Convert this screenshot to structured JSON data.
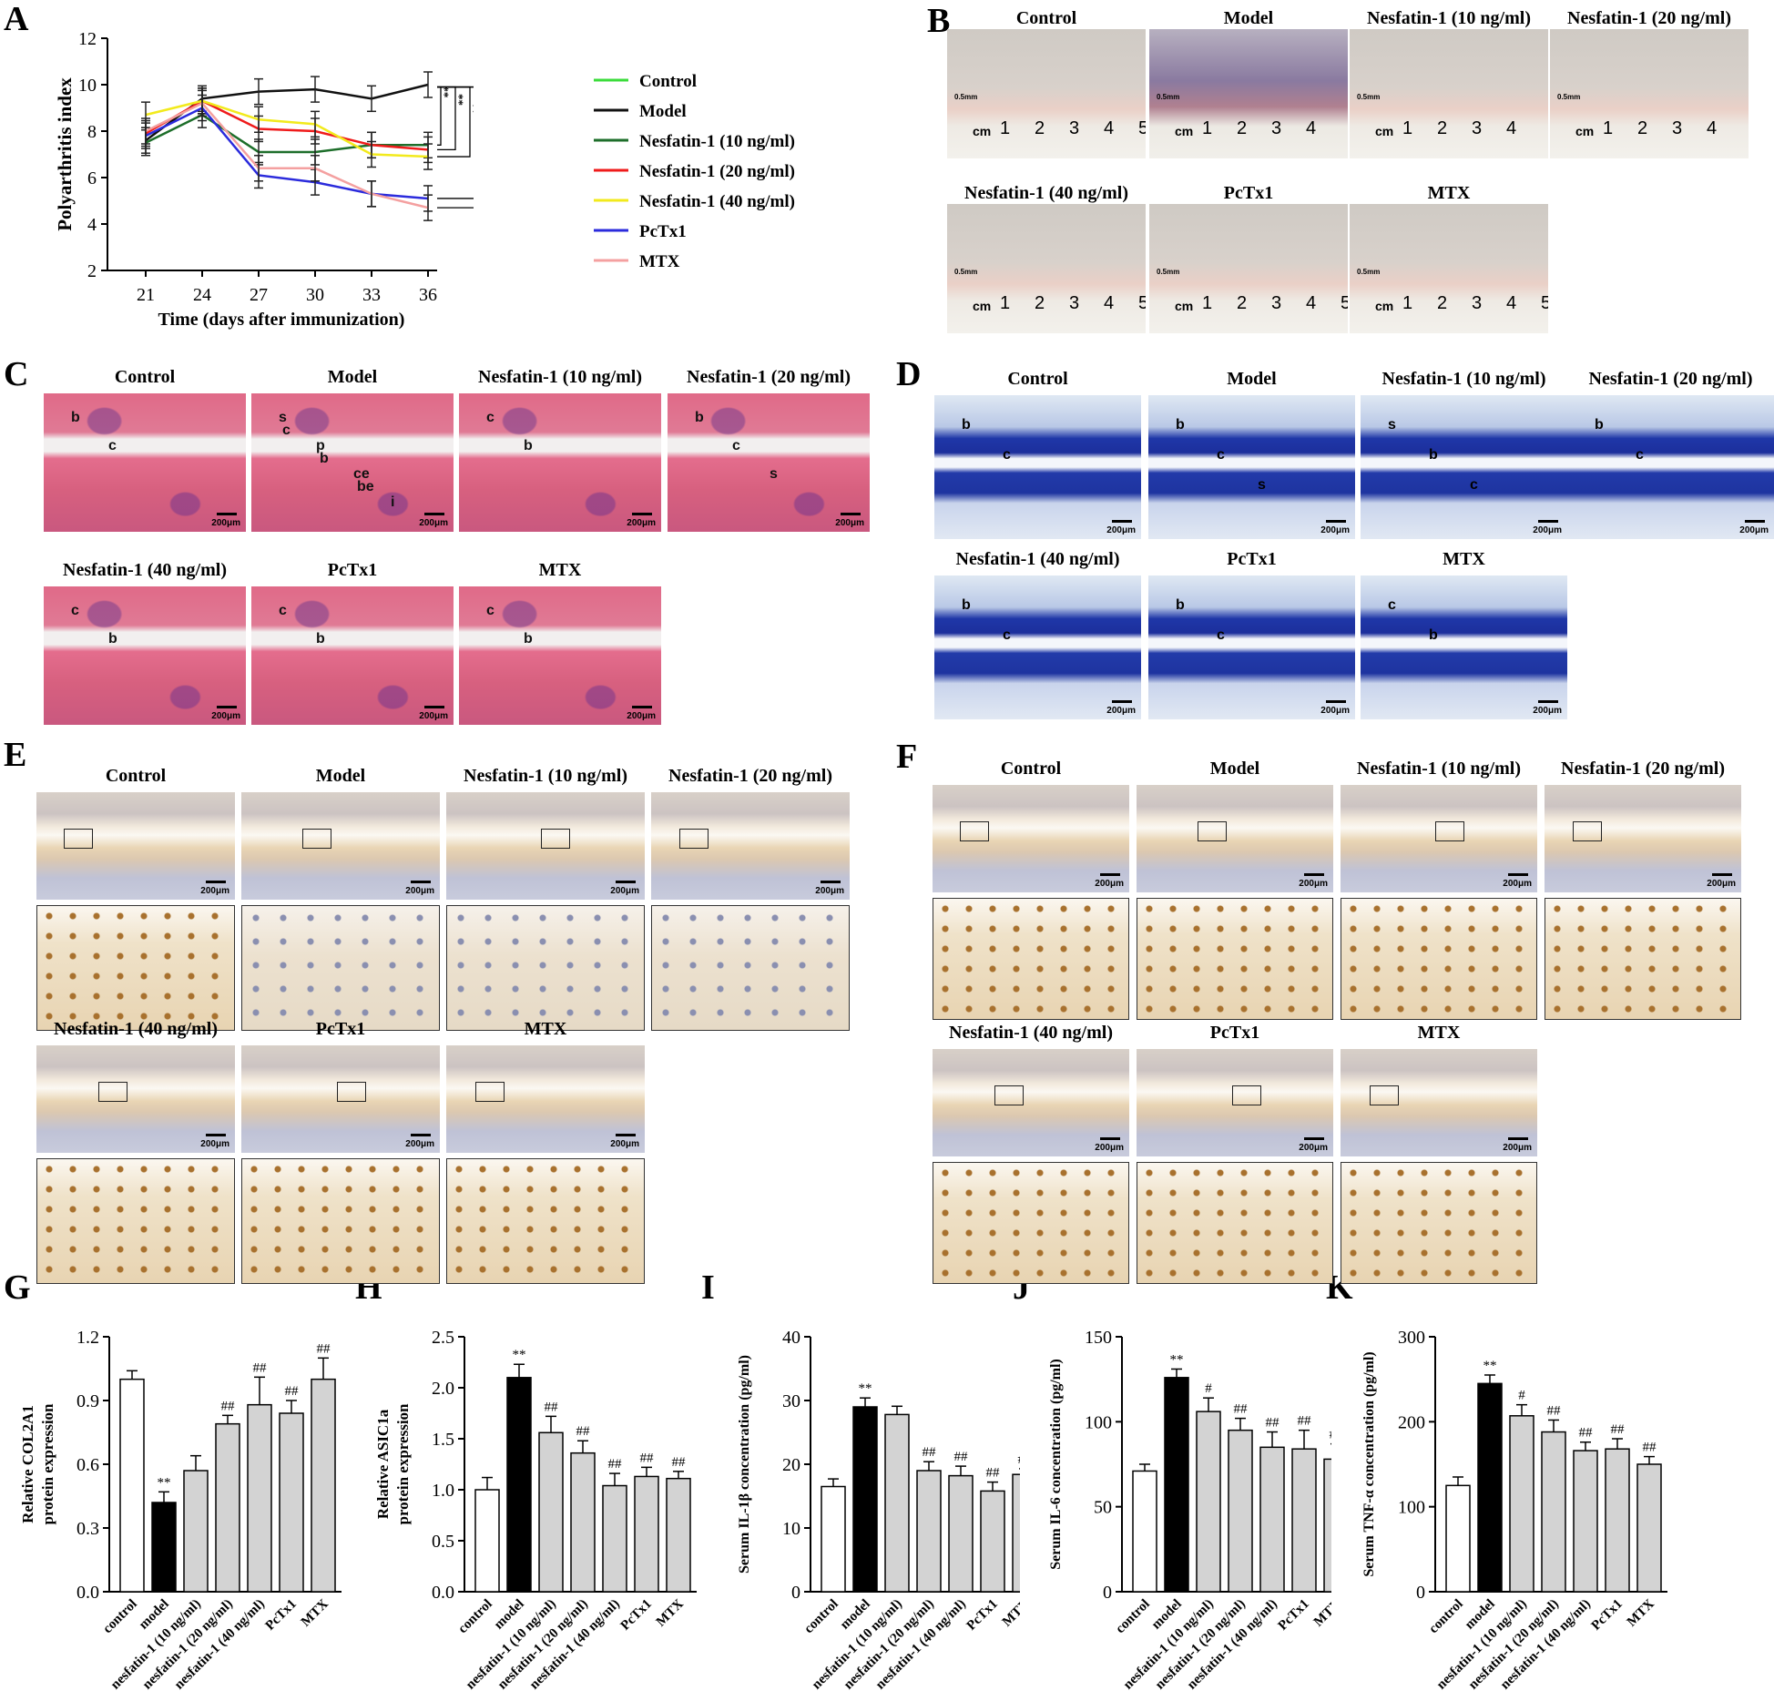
{
  "panel_letters": {
    "A": "A",
    "B": "B",
    "C": "C",
    "D": "D",
    "E": "E",
    "F": "F",
    "G": "G",
    "H": "H",
    "I": "I",
    "J": "J",
    "K": "K"
  },
  "groups": [
    "Control",
    "Model",
    "Nesfatin-1 (10 ng/ml)",
    "Nesfatin-1 (20 ng/ml)",
    "Nesfatin-1 (40 ng/ml)",
    "PcTx1",
    "MTX"
  ],
  "scale_label": "200μm",
  "ruler_unit": "cm",
  "ruler_small": "0.5mm",
  "ruler_ticks": [
    "1",
    "2",
    "3",
    "4",
    "5"
  ],
  "colors": {
    "control": "#3bdc3b",
    "model": "#111111",
    "n10": "#1d6e2a",
    "n20": "#ef1b1b",
    "n40": "#f2ea1c",
    "pctx1": "#2b2bdc",
    "mtx": "#f4a0a0",
    "bar_gray": "#d3d3d3"
  },
  "chart_data": [
    {
      "id": "A",
      "type": "line",
      "ylabel": "Polyarthritis index",
      "xlabel": "Time (days after immunization)",
      "x": [
        21,
        24,
        27,
        30,
        33,
        36
      ],
      "ylim": [
        2,
        12
      ],
      "yticks": [
        2,
        4,
        6,
        8,
        10,
        12
      ],
      "series": [
        {
          "name": "Control",
          "values": [
            null,
            null,
            null,
            null,
            null,
            null
          ]
        },
        {
          "name": "Model",
          "values": [
            7.6,
            9.4,
            9.7,
            9.8,
            9.4,
            10.0
          ]
        },
        {
          "name": "Nesfatin-1 (10 ng/ml)",
          "values": [
            7.5,
            8.7,
            7.1,
            7.1,
            7.4,
            7.4
          ]
        },
        {
          "name": "Nesfatin-1 (20 ng/ml)",
          "values": [
            7.9,
            9.3,
            8.1,
            8.0,
            7.4,
            7.2
          ]
        },
        {
          "name": "Nesfatin-1 (40 ng/ml)",
          "values": [
            8.7,
            9.3,
            8.5,
            8.3,
            7.0,
            6.9
          ]
        },
        {
          "name": "PcTx1",
          "values": [
            7.8,
            9.0,
            6.1,
            5.8,
            5.3,
            5.1
          ]
        },
        {
          "name": "MTX",
          "values": [
            8.0,
            9.2,
            6.4,
            6.4,
            5.3,
            4.7
          ]
        }
      ],
      "significance": [
        "**",
        "**",
        "**",
        "**",
        "**"
      ]
    },
    {
      "id": "G",
      "type": "bar",
      "ylabel": "Relative COL2A1 protein expression",
      "ylabel_lines": [
        "Relative COL2A1",
        "protein expression"
      ],
      "categories": [
        "control",
        "model",
        "nesfatin-1 (10 ng/ml)",
        "nesfatin-1 (20 ng/ml)",
        "nesfatin-1 (40 ng/ml)",
        "PcTx1",
        "MTX"
      ],
      "values": [
        1.0,
        0.42,
        0.57,
        0.79,
        0.88,
        0.84,
        1.0
      ],
      "errors": [
        0.04,
        0.05,
        0.07,
        0.04,
        0.13,
        0.06,
        0.1
      ],
      "annotations": [
        "",
        "**",
        "",
        "##",
        "##",
        "##",
        "##"
      ],
      "ylim": [
        0,
        1.2
      ],
      "yticks": [
        "0.0",
        "0.3",
        "0.6",
        "0.9",
        "1.2"
      ]
    },
    {
      "id": "H",
      "type": "bar",
      "ylabel": "Relative ASIC1a protein expression",
      "ylabel_lines": [
        "Relative ASIC1a",
        "protein expression"
      ],
      "categories": [
        "control",
        "model",
        "nesfatin-1 (10 ng/ml)",
        "nesfatin-1 (20 ng/ml)",
        "nesfatin-1 (40 ng/ml)",
        "PcTx1",
        "MTX"
      ],
      "values": [
        1.0,
        2.1,
        1.56,
        1.36,
        1.04,
        1.13,
        1.11
      ],
      "errors": [
        0.12,
        0.13,
        0.16,
        0.12,
        0.12,
        0.09,
        0.07
      ],
      "annotations": [
        "",
        "**",
        "##",
        "##",
        "##",
        "##",
        "##"
      ],
      "ylim": [
        0,
        2.5
      ],
      "yticks": [
        "0.0",
        "0.5",
        "1.0",
        "1.5",
        "2.0",
        "2.5"
      ]
    },
    {
      "id": "I",
      "type": "bar",
      "ylabel": "Serum IL-1β concentration (pg/ml)",
      "ylabel_lines": [
        "Serum IL-1β concentration (pg/ml)"
      ],
      "categories": [
        "control",
        "model",
        "nesfatin-1 (10 ng/ml)",
        "nesfatin-1 (20 ng/ml)",
        "nesfatin-1 (40 ng/ml)",
        "PcTx1",
        "MTX"
      ],
      "values": [
        16.5,
        29.0,
        27.8,
        19.0,
        18.2,
        15.8,
        18.4
      ],
      "errors": [
        1.2,
        1.4,
        1.3,
        1.4,
        1.5,
        1.4,
        0.9
      ],
      "annotations": [
        "",
        "**",
        "",
        "##",
        "##",
        "##",
        "##"
      ],
      "ylim": [
        0,
        40
      ],
      "yticks": [
        "0",
        "10",
        "20",
        "30",
        "40"
      ]
    },
    {
      "id": "J",
      "type": "bar",
      "ylabel": "Serum IL-6 concentration (pg/ml)",
      "ylabel_lines": [
        "Serum IL-6 concentration (pg/ml)"
      ],
      "categories": [
        "control",
        "model",
        "nesfatin-1 (10 ng/ml)",
        "nesfatin-1 (20 ng/ml)",
        "nesfatin-1 (40 ng/ml)",
        "PcTx1",
        "MTX"
      ],
      "values": [
        71,
        126,
        106,
        95,
        85,
        84,
        78
      ],
      "errors": [
        4,
        5,
        8,
        7,
        9,
        11,
        9
      ],
      "annotations": [
        "",
        "**",
        "#",
        "##",
        "##",
        "##",
        "##"
      ],
      "ylim": [
        0,
        150
      ],
      "yticks": [
        "0",
        "50",
        "100",
        "150"
      ]
    },
    {
      "id": "K",
      "type": "bar",
      "ylabel": "Serum TNF-α concentration (pg/ml)",
      "ylabel_lines": [
        "Serum TNF-α concentration (pg/ml)"
      ],
      "categories": [
        "control",
        "model",
        "nesfatin-1 (10 ng/ml)",
        "nesfatin-1 (20 ng/ml)",
        "nesfatin-1 (40 ng/ml)",
        "PcTx1",
        "MTX"
      ],
      "values": [
        125,
        245,
        207,
        188,
        166,
        168,
        150
      ],
      "errors": [
        10,
        10,
        13,
        14,
        10,
        12,
        9
      ],
      "annotations": [
        "",
        "**",
        "#",
        "##",
        "##",
        "##",
        "##"
      ],
      "ylim": [
        0,
        300
      ],
      "yticks": [
        "0",
        "100",
        "200",
        "300"
      ]
    }
  ],
  "he_annotations": {
    "control": [
      "b",
      "c"
    ],
    "model": [
      "s",
      "p",
      "ce",
      "i",
      "c",
      "b",
      "be"
    ],
    "n10": [
      "c",
      "b"
    ],
    "n20": [
      "b",
      "c",
      "s"
    ],
    "n40": [
      "c",
      "b"
    ],
    "pctx1": [
      "c",
      "b"
    ],
    "mtx": [
      "c",
      "b"
    ]
  },
  "tb_annotations": {
    "control": [
      "b",
      "c"
    ],
    "model": [
      "b",
      "c",
      "s"
    ],
    "n10": [
      "s",
      "b",
      "c"
    ],
    "n20": [
      "b",
      "c"
    ],
    "n40": [
      "b",
      "c"
    ],
    "pctx1": [
      "b",
      "c"
    ],
    "mtx": [
      "c",
      "b"
    ]
  }
}
